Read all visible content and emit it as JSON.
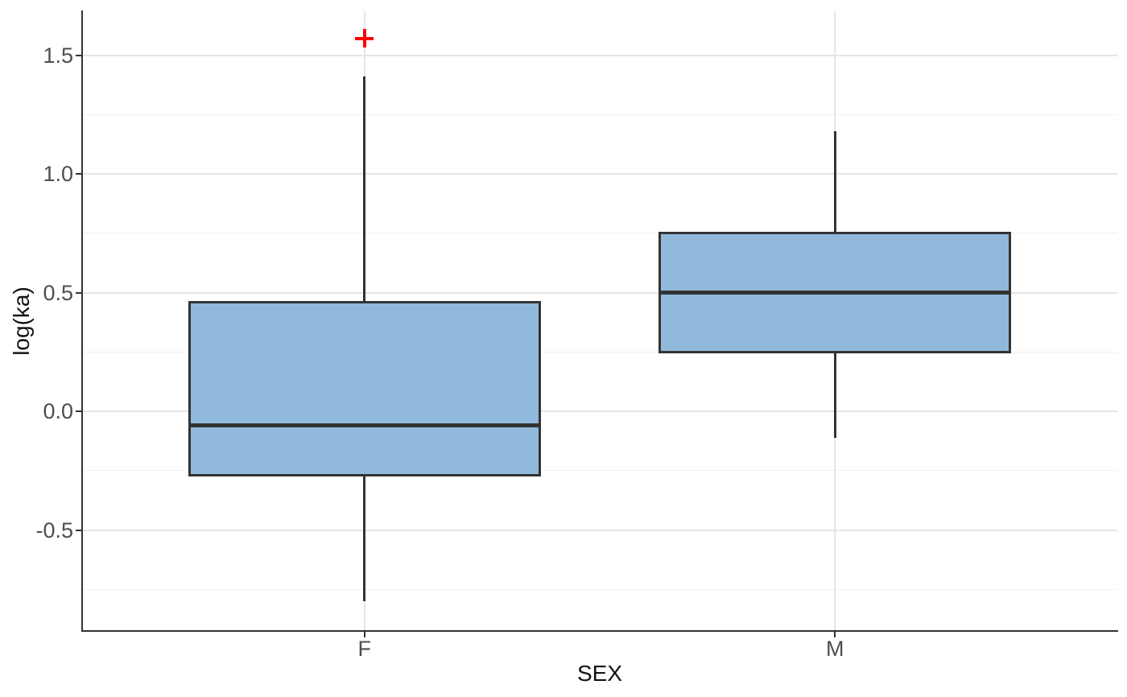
{
  "axes": {
    "x_title": "SEX",
    "y_title": "log(ka)",
    "x_categories": [
      "F",
      "M"
    ]
  },
  "chart_data": {
    "type": "boxplot",
    "title": "",
    "xlabel": "SEX",
    "ylabel": "log(ka)",
    "categories": [
      "F",
      "M"
    ],
    "series": [
      {
        "category": "F",
        "position": 1,
        "lower_whisker": -0.8,
        "q1": -0.27,
        "median": -0.06,
        "q3": 0.46,
        "upper_whisker": 1.41,
        "outliers": [
          1.57
        ]
      },
      {
        "category": "M",
        "position": 2,
        "lower_whisker": -0.11,
        "q1": 0.25,
        "median": 0.5,
        "q3": 0.75,
        "upper_whisker": 1.18,
        "outliers": []
      }
    ],
    "box_width": 0.75,
    "x_range": [
      0.4,
      2.6
    ],
    "ylim": [
      -0.925,
      1.685
    ],
    "y_ticks_major": [
      -0.5,
      0,
      0.5,
      1,
      1.5
    ],
    "y_tick_labels": [
      "-0.5",
      "0.0",
      "0.5",
      "1.0",
      "1.5"
    ],
    "y_ticks_minor": [
      -0.75,
      -0.25,
      0.25,
      0.75,
      1.25
    ],
    "grid": "major-and-minor",
    "legend_position": "none",
    "outlier_shape": "plus"
  },
  "style": {
    "background": "#ffffff",
    "box_fill": "#90b9dc",
    "box_stroke": "#333333",
    "median_stroke": "#333333",
    "outlier_color": "#ff0000",
    "grid_major": "#e5e5e5",
    "grid_minor": "#f0f0f0",
    "axis_line": "#333333",
    "tick_label_color": "#4d4d4d",
    "axis_title_color": "#141414"
  }
}
